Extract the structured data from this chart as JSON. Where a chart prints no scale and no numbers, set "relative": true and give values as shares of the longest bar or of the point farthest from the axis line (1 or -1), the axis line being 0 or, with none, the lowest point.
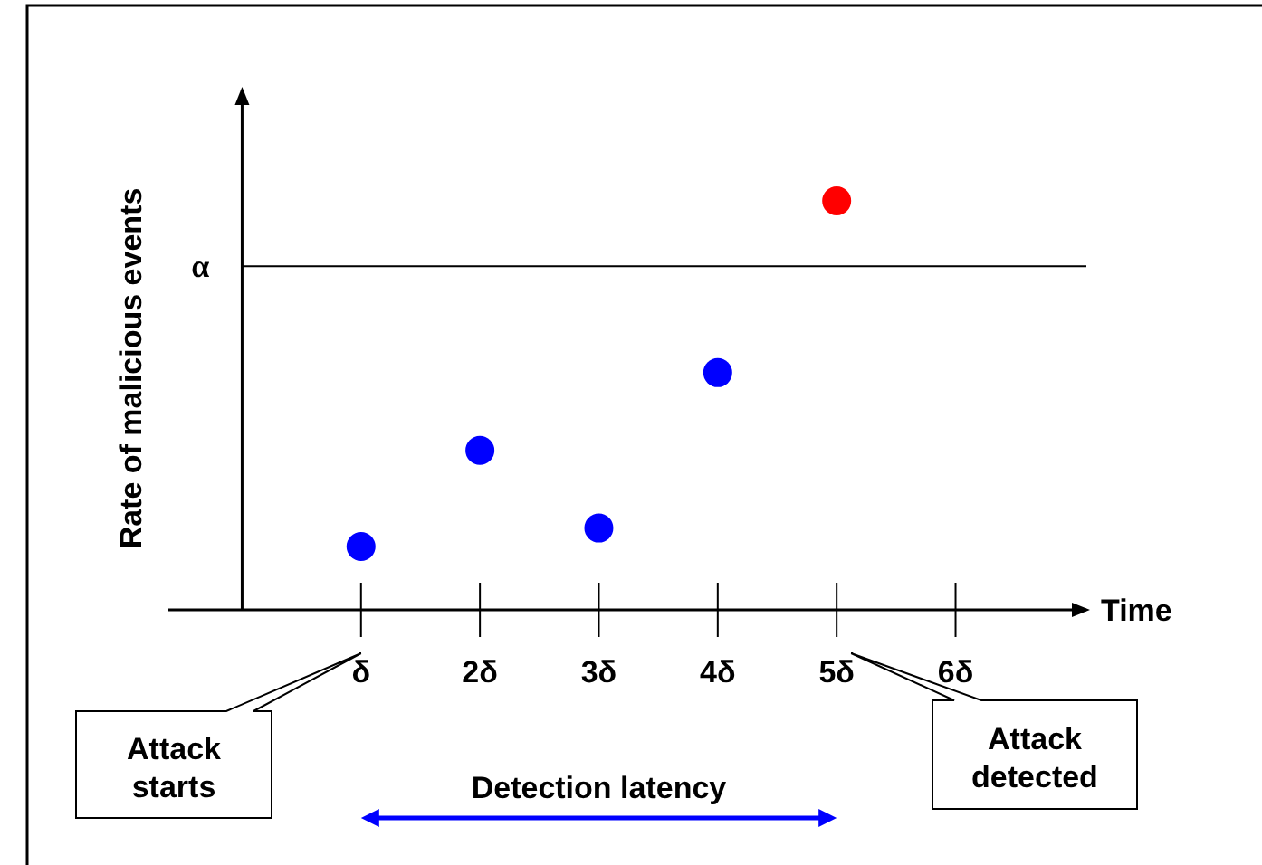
{
  "chart_data": {
    "type": "scatter",
    "relative": true,
    "xlabel": "Time",
    "ylabel": "Rate of malicious events",
    "x": [
      1,
      2,
      3,
      4,
      5
    ],
    "values": [
      0.155,
      0.39,
      0.2,
      0.58,
      1
    ],
    "colors": [
      "#0000ff",
      "#0000ff",
      "#0000ff",
      "#0000ff",
      "#ff0000"
    ],
    "marker": "circle",
    "xlim": [
      -0.62,
      7.1
    ],
    "xticks": [
      {
        "value": 1,
        "label": "δ"
      },
      {
        "value": 2,
        "label": "2δ"
      },
      {
        "value": 3,
        "label": "3δ"
      },
      {
        "value": 4,
        "label": "4δ"
      },
      {
        "value": 5,
        "label": "5δ"
      },
      {
        "value": 6,
        "label": "6δ"
      }
    ],
    "ref_lines": [
      {
        "axis": "y",
        "value": 0.84,
        "label": "α",
        "color": "#000000"
      }
    ],
    "annotations": [
      "Attack starts",
      "Attack detected",
      "Detection latency"
    ]
  }
}
